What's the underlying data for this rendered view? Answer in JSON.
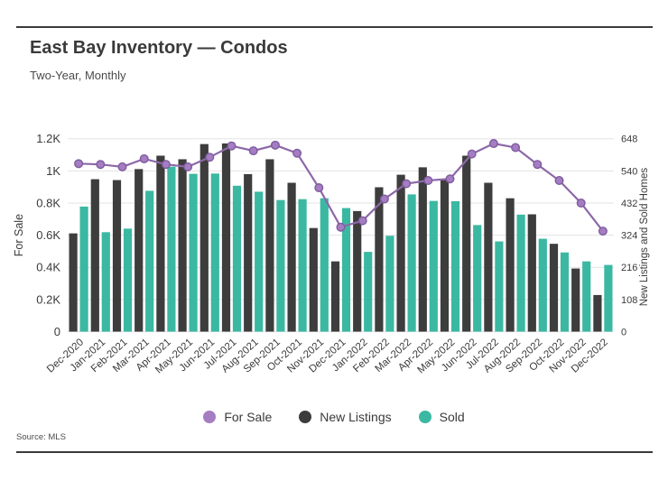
{
  "page": {
    "title": "East Bay Inventory — Condos",
    "subtitle": "Two-Year, Monthly",
    "source": "Source: MLS"
  },
  "legend": [
    {
      "label": "For Sale",
      "color": "#a57dc2",
      "icon": "circle-swatch"
    },
    {
      "label": "New Listings",
      "color": "#3d3d3d",
      "icon": "circle-swatch"
    },
    {
      "label": "Sold",
      "color": "#3bb8a2",
      "icon": "circle-swatch"
    }
  ],
  "chart_data": {
    "type": "bar+line combo",
    "title": "East Bay Inventory — Condos",
    "subtitle": "Two-Year, Monthly",
    "grid": "horizontal",
    "legend_position": "bottom",
    "categories": [
      "Dec-2020",
      "Jan-2021",
      "Feb-2021",
      "Mar-2021",
      "Apr-2021",
      "May-2021",
      "Jun-2021",
      "Jul-2021",
      "Aug-2021",
      "Sep-2021",
      "Oct-2021",
      "Nov-2021",
      "Dec-2021",
      "Jan-2022",
      "Feb-2022",
      "Mar-2022",
      "Apr-2022",
      "May-2022",
      "Jun-2022",
      "Jul-2022",
      "Aug-2022",
      "Sep-2022",
      "Oct-2022",
      "Nov-2022",
      "Dec-2022"
    ],
    "left_axis": {
      "label": "For Sale",
      "min": 0,
      "max": 1200,
      "tick_step": 200,
      "tick_labels": [
        "0",
        "0.2K",
        "0.4K",
        "0.6K",
        "0.8K",
        "1K",
        "1.2K"
      ]
    },
    "right_axis": {
      "label": "New Listings and Sold Homes",
      "min": 0,
      "max": 648,
      "tick_step": 108,
      "tick_labels": [
        "0",
        "108",
        "216",
        "324",
        "432",
        "540",
        "648"
      ]
    },
    "series": [
      {
        "name": "For Sale",
        "type": "line",
        "axis": "left",
        "color": "#8d68a8",
        "marker_fill": "#a57dc2",
        "marker_stroke": "#7e5c9e",
        "values": [
          1045,
          1040,
          1025,
          1075,
          1040,
          1025,
          1085,
          1155,
          1125,
          1160,
          1110,
          895,
          650,
          690,
          825,
          920,
          940,
          950,
          1105,
          1170,
          1145,
          1040,
          940,
          800,
          625
        ]
      },
      {
        "name": "New Listings",
        "type": "bar",
        "axis": "right",
        "color": "#3d3d3d",
        "values": [
          330,
          512,
          509,
          546,
          591,
          579,
          630,
          632,
          529,
          579,
          500,
          348,
          236,
          405,
          485,
          527,
          552,
          509,
          591,
          500,
          448,
          394,
          295,
          212,
          123
        ]
      },
      {
        "name": "Sold",
        "type": "bar",
        "axis": "right",
        "color": "#3bb8a2",
        "values": [
          420,
          334,
          346,
          473,
          554,
          530,
          531,
          490,
          470,
          442,
          445,
          448,
          415,
          268,
          322,
          461,
          439,
          438,
          358,
          303,
          393,
          312,
          266,
          236,
          224
        ]
      }
    ]
  }
}
